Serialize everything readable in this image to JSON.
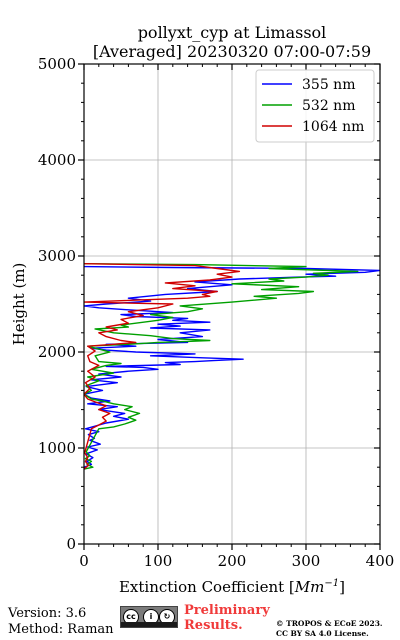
{
  "chart_data": {
    "type": "line",
    "title": "pollyxt_cyp at Limassol",
    "subtitle": "[Averaged] 20230320 07:00-07:59",
    "xlabel_prefix": "Extinction Coefficient [",
    "xlabel_unit": "Mm",
    "xlabel_exp": "−1",
    "xlabel_suffix": "]",
    "ylabel": "Height (m)",
    "xlim": [
      0,
      400
    ],
    "ylim": [
      0,
      5000
    ],
    "xticks": [
      0,
      100,
      200,
      300,
      400
    ],
    "xtick_labels": [
      "0",
      "100",
      "200",
      "300",
      "400"
    ],
    "yticks": [
      0,
      1000,
      2000,
      3000,
      4000,
      5000
    ],
    "ytick_labels": [
      "0",
      "1000",
      "2000",
      "3000",
      "4000",
      "5000"
    ],
    "grid": true,
    "legend_position": "top-right",
    "series": [
      {
        "name": "355 nm",
        "color": "#0000ff",
        "points": [
          [
            0,
            800
          ],
          [
            10,
            830
          ],
          [
            4,
            860
          ],
          [
            12,
            900
          ],
          [
            3,
            940
          ],
          [
            18,
            980
          ],
          [
            5,
            1010
          ],
          [
            22,
            1040
          ],
          [
            8,
            1080
          ],
          [
            14,
            1100
          ],
          [
            6,
            1140
          ],
          [
            20,
            1170
          ],
          [
            2,
            1200
          ],
          [
            30,
            1260
          ],
          [
            60,
            1300
          ],
          [
            40,
            1330
          ],
          [
            55,
            1360
          ],
          [
            20,
            1400
          ],
          [
            45,
            1430
          ],
          [
            5,
            1460
          ],
          [
            35,
            1490
          ],
          [
            10,
            1520
          ],
          [
            0,
            1560
          ],
          [
            25,
            1600
          ],
          [
            3,
            1640
          ],
          [
            45,
            1680
          ],
          [
            10,
            1710
          ],
          [
            50,
            1740
          ],
          [
            20,
            1770
          ],
          [
            60,
            1800
          ],
          [
            100,
            1820
          ],
          [
            80,
            1840
          ],
          [
            30,
            1850
          ],
          [
            130,
            1870
          ],
          [
            110,
            1890
          ],
          [
            150,
            1900
          ],
          [
            175,
            1910
          ],
          [
            215,
            1925
          ],
          [
            160,
            1940
          ],
          [
            90,
            1960
          ],
          [
            150,
            1980
          ],
          [
            70,
            2000
          ],
          [
            30,
            2020
          ],
          [
            10,
            2040
          ],
          [
            70,
            2060
          ],
          [
            30,
            2080
          ],
          [
            140,
            2100
          ],
          [
            100,
            2130
          ],
          [
            160,
            2160
          ],
          [
            130,
            2200
          ],
          [
            170,
            2230
          ],
          [
            90,
            2250
          ],
          [
            130,
            2270
          ],
          [
            100,
            2290
          ],
          [
            170,
            2310
          ],
          [
            120,
            2330
          ],
          [
            140,
            2350
          ],
          [
            70,
            2370
          ],
          [
            50,
            2390
          ],
          [
            120,
            2410
          ],
          [
            60,
            2440
          ],
          [
            20,
            2460
          ],
          [
            0,
            2480
          ],
          [
            30,
            2500
          ],
          [
            90,
            2530
          ],
          [
            60,
            2560
          ],
          [
            110,
            2600
          ],
          [
            180,
            2630
          ],
          [
            140,
            2660
          ],
          [
            200,
            2700
          ],
          [
            150,
            2730
          ],
          [
            210,
            2760
          ],
          [
            290,
            2780
          ],
          [
            340,
            2790
          ],
          [
            300,
            2810
          ],
          [
            380,
            2830
          ],
          [
            400,
            2850
          ],
          [
            300,
            2870
          ],
          [
            120,
            2880
          ],
          [
            0,
            2890
          ]
        ]
      },
      {
        "name": "532 nm",
        "color": "#00a000",
        "points": [
          [
            0,
            780
          ],
          [
            12,
            800
          ],
          [
            4,
            830
          ],
          [
            10,
            860
          ],
          [
            2,
            890
          ],
          [
            8,
            920
          ],
          [
            3,
            960
          ],
          [
            20,
            1200
          ],
          [
            40,
            1220
          ],
          [
            55,
            1250
          ],
          [
            70,
            1290
          ],
          [
            60,
            1320
          ],
          [
            75,
            1360
          ],
          [
            55,
            1400
          ],
          [
            65,
            1430
          ],
          [
            40,
            1460
          ],
          [
            25,
            1490
          ],
          [
            10,
            1510
          ],
          [
            0,
            1560
          ],
          [
            10,
            1600
          ],
          [
            3,
            1650
          ],
          [
            20,
            1700
          ],
          [
            5,
            1740
          ],
          [
            40,
            1780
          ],
          [
            10,
            1820
          ],
          [
            30,
            1860
          ],
          [
            50,
            1880
          ],
          [
            20,
            1900
          ],
          [
            15,
            1960
          ],
          [
            35,
            2000
          ],
          [
            20,
            2030
          ],
          [
            5,
            2060
          ],
          [
            60,
            2080
          ],
          [
            100,
            2100
          ],
          [
            140,
            2110
          ],
          [
            170,
            2120
          ],
          [
            120,
            2140
          ],
          [
            90,
            2170
          ],
          [
            40,
            2200
          ],
          [
            15,
            2240
          ],
          [
            60,
            2260
          ],
          [
            50,
            2280
          ],
          [
            100,
            2330
          ],
          [
            120,
            2360
          ],
          [
            90,
            2390
          ],
          [
            140,
            2420
          ],
          [
            160,
            2450
          ],
          [
            130,
            2480
          ],
          [
            200,
            2520
          ],
          [
            260,
            2560
          ],
          [
            230,
            2580
          ],
          [
            290,
            2610
          ],
          [
            310,
            2630
          ],
          [
            240,
            2650
          ],
          [
            290,
            2680
          ],
          [
            200,
            2710
          ],
          [
            270,
            2740
          ],
          [
            250,
            2760
          ],
          [
            300,
            2780
          ],
          [
            330,
            2800
          ],
          [
            310,
            2820
          ],
          [
            370,
            2840
          ],
          [
            250,
            2870
          ],
          [
            300,
            2890
          ],
          [
            150,
            2910
          ],
          [
            0,
            2920
          ]
        ]
      },
      {
        "name": "1064 nm",
        "color": "#d00000",
        "points": [
          [
            0,
            780
          ],
          [
            6,
            820
          ],
          [
            2,
            860
          ],
          [
            5,
            900
          ],
          [
            1,
            950
          ],
          [
            10,
            1200
          ],
          [
            20,
            1240
          ],
          [
            30,
            1280
          ],
          [
            25,
            1320
          ],
          [
            35,
            1360
          ],
          [
            20,
            1400
          ],
          [
            30,
            1440
          ],
          [
            15,
            1480
          ],
          [
            5,
            1510
          ],
          [
            0,
            1560
          ],
          [
            8,
            1620
          ],
          [
            2,
            1680
          ],
          [
            15,
            1740
          ],
          [
            5,
            1800
          ],
          [
            20,
            1860
          ],
          [
            8,
            1900
          ],
          [
            5,
            1960
          ],
          [
            15,
            2010
          ],
          [
            5,
            2060
          ],
          [
            40,
            2080
          ],
          [
            70,
            2100
          ],
          [
            50,
            2120
          ],
          [
            30,
            2160
          ],
          [
            20,
            2200
          ],
          [
            45,
            2230
          ],
          [
            30,
            2260
          ],
          [
            60,
            2300
          ],
          [
            50,
            2340
          ],
          [
            80,
            2380
          ],
          [
            60,
            2420
          ],
          [
            100,
            2460
          ],
          [
            120,
            2500
          ],
          [
            0,
            2520
          ],
          [
            140,
            2560
          ],
          [
            170,
            2580
          ],
          [
            160,
            2600
          ],
          [
            180,
            2630
          ],
          [
            120,
            2660
          ],
          [
            150,
            2690
          ],
          [
            110,
            2720
          ],
          [
            170,
            2750
          ],
          [
            200,
            2780
          ],
          [
            180,
            2810
          ],
          [
            210,
            2840
          ],
          [
            180,
            2870
          ],
          [
            150,
            2900
          ],
          [
            0,
            2920
          ]
        ]
      }
    ]
  },
  "footer": {
    "version": "Version: 3.6",
    "method": "Method: Raman",
    "preliminary_line1": "Preliminary",
    "preliminary_line2": "Results.",
    "copyright_line1": "© TROPOS & ECoE 2023.",
    "copyright_line2": "CC BY SA 4.0 License."
  },
  "license_badge": {
    "icon_name": "cc-by-sa-badge-icon",
    "glyph_cc": "cc",
    "glyph_by": "i",
    "glyph_sa": "↻"
  }
}
